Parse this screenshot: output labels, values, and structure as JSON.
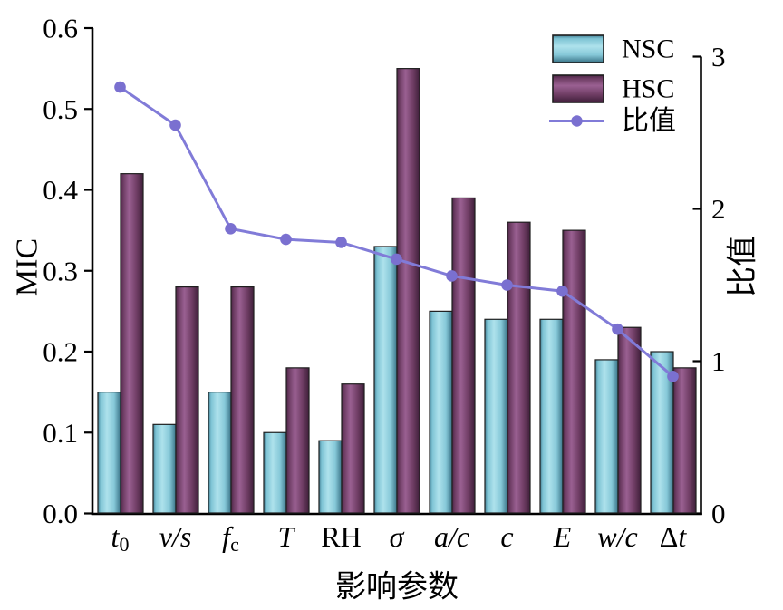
{
  "chart_data": {
    "type": "bar",
    "combo": "grouped-bars-with-line-on-secondary-axis",
    "categories": [
      "t0",
      "v/s",
      "fc",
      "T",
      "RH",
      "σ",
      "a/c",
      "c",
      "E",
      "w/c",
      "Δt"
    ],
    "category_segments": [
      [
        {
          "t": "t",
          "i": true
        },
        {
          "t": "0",
          "sub": true
        }
      ],
      [
        {
          "t": "v/s",
          "i": true
        }
      ],
      [
        {
          "t": "f",
          "i": true
        },
        {
          "t": "c",
          "sub": true
        }
      ],
      [
        {
          "t": "T",
          "i": true
        }
      ],
      [
        {
          "t": "RH"
        }
      ],
      [
        {
          "t": "σ",
          "i": true
        }
      ],
      [
        {
          "t": "a/c",
          "i": true
        }
      ],
      [
        {
          "t": "c",
          "i": true
        }
      ],
      [
        {
          "t": "E",
          "i": true
        }
      ],
      [
        {
          "t": "w/c",
          "i": true
        }
      ],
      [
        {
          "t": "Δ"
        },
        {
          "t": "t",
          "i": true
        }
      ]
    ],
    "series": [
      {
        "name": "NSC",
        "type": "bar",
        "axis": "left",
        "values": [
          0.15,
          0.11,
          0.15,
          0.1,
          0.09,
          0.33,
          0.25,
          0.24,
          0.24,
          0.19,
          0.2
        ]
      },
      {
        "name": "HSC",
        "type": "bar",
        "axis": "left",
        "values": [
          0.42,
          0.28,
          0.28,
          0.18,
          0.16,
          0.55,
          0.39,
          0.36,
          0.35,
          0.23,
          0.18
        ]
      },
      {
        "name": "比值",
        "type": "line",
        "axis": "right",
        "values": [
          2.8,
          2.55,
          1.87,
          1.8,
          1.78,
          1.67,
          1.56,
          1.5,
          1.46,
          1.21,
          0.9
        ]
      }
    ],
    "left_axis": {
      "label": "MIC",
      "min": 0,
      "max": 0.6,
      "tick_labels": [
        "0.0",
        "0.1",
        "0.2",
        "0.3",
        "0.4",
        "0.5",
        "0.6"
      ]
    },
    "right_axis": {
      "label": "比值",
      "min": 0,
      "max": 3,
      "tick_labels": [
        "0",
        "1",
        "2",
        "3"
      ]
    },
    "xlabel": "影响参数",
    "legend": {
      "items": [
        "NSC",
        "HSC",
        "比值"
      ],
      "position": "top-right-inside"
    },
    "grid": false,
    "colors": {
      "background": "#ffffff",
      "axis": "#000000",
      "text": "#000000",
      "bar_outline": "#1f1f1f",
      "nsc_gradient": [
        [
          0,
          "#447f93"
        ],
        [
          0.12,
          "#7dc3d4"
        ],
        [
          0.4,
          "#aee2ec"
        ],
        [
          0.72,
          "#86c8d8"
        ],
        [
          1,
          "#3a7488"
        ]
      ],
      "hsc_gradient": [
        [
          0,
          "#4a2544"
        ],
        [
          0.12,
          "#6d3c63"
        ],
        [
          0.38,
          "#9a6092"
        ],
        [
          0.72,
          "#6e3c63"
        ],
        [
          1,
          "#3f1f3a"
        ]
      ],
      "ratio_line": "#817bd8",
      "ratio_marker": "#7a70d0"
    }
  }
}
